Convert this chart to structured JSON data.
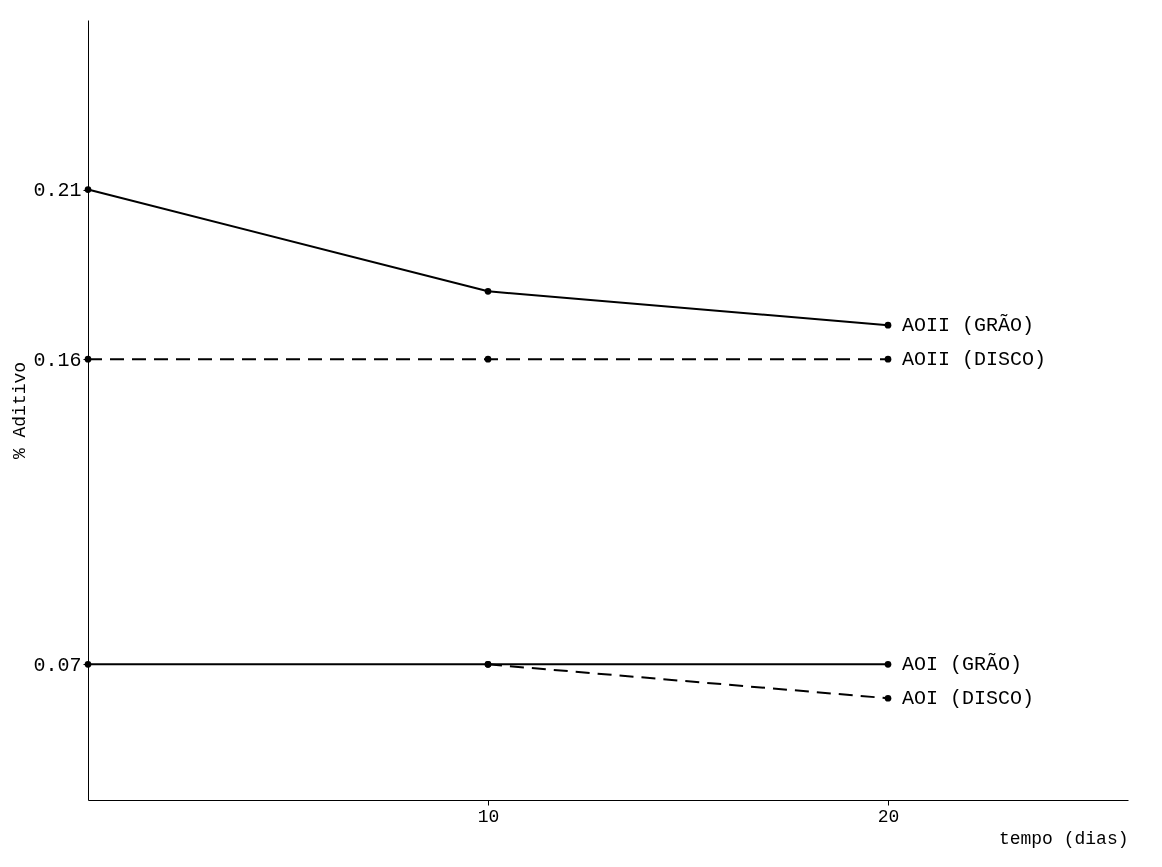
{
  "chart_data": {
    "type": "line",
    "xlabel": "tempo (dias)",
    "ylabel": "% Aditivo",
    "x": [
      0,
      10,
      20
    ],
    "series": [
      {
        "name": "AOII (GRÃO)",
        "color": "#000000",
        "line_style": "solid",
        "values": [
          0.21,
          0.18,
          0.17
        ]
      },
      {
        "name": "AOII (DISCO)",
        "color": "#000000",
        "line_style": "dashed",
        "values": [
          0.16,
          0.16,
          0.16
        ]
      },
      {
        "name": "AOI (GRÃO)",
        "color": "#000000",
        "line_style": "solid",
        "values": [
          0.07,
          0.07,
          0.07
        ]
      },
      {
        "name": "AOI (DISCO)",
        "color": "#000000",
        "line_style": "dashed",
        "x": [
          10,
          20
        ],
        "values": [
          0.07,
          0.06
        ]
      }
    ],
    "xlim": [
      0,
      26
    ],
    "xticks": [
      10,
      20
    ],
    "ylim": [
      0.03,
      0.26
    ],
    "yticks": [
      0.07,
      0.16,
      0.21
    ],
    "grid": false,
    "marker": "circle"
  }
}
